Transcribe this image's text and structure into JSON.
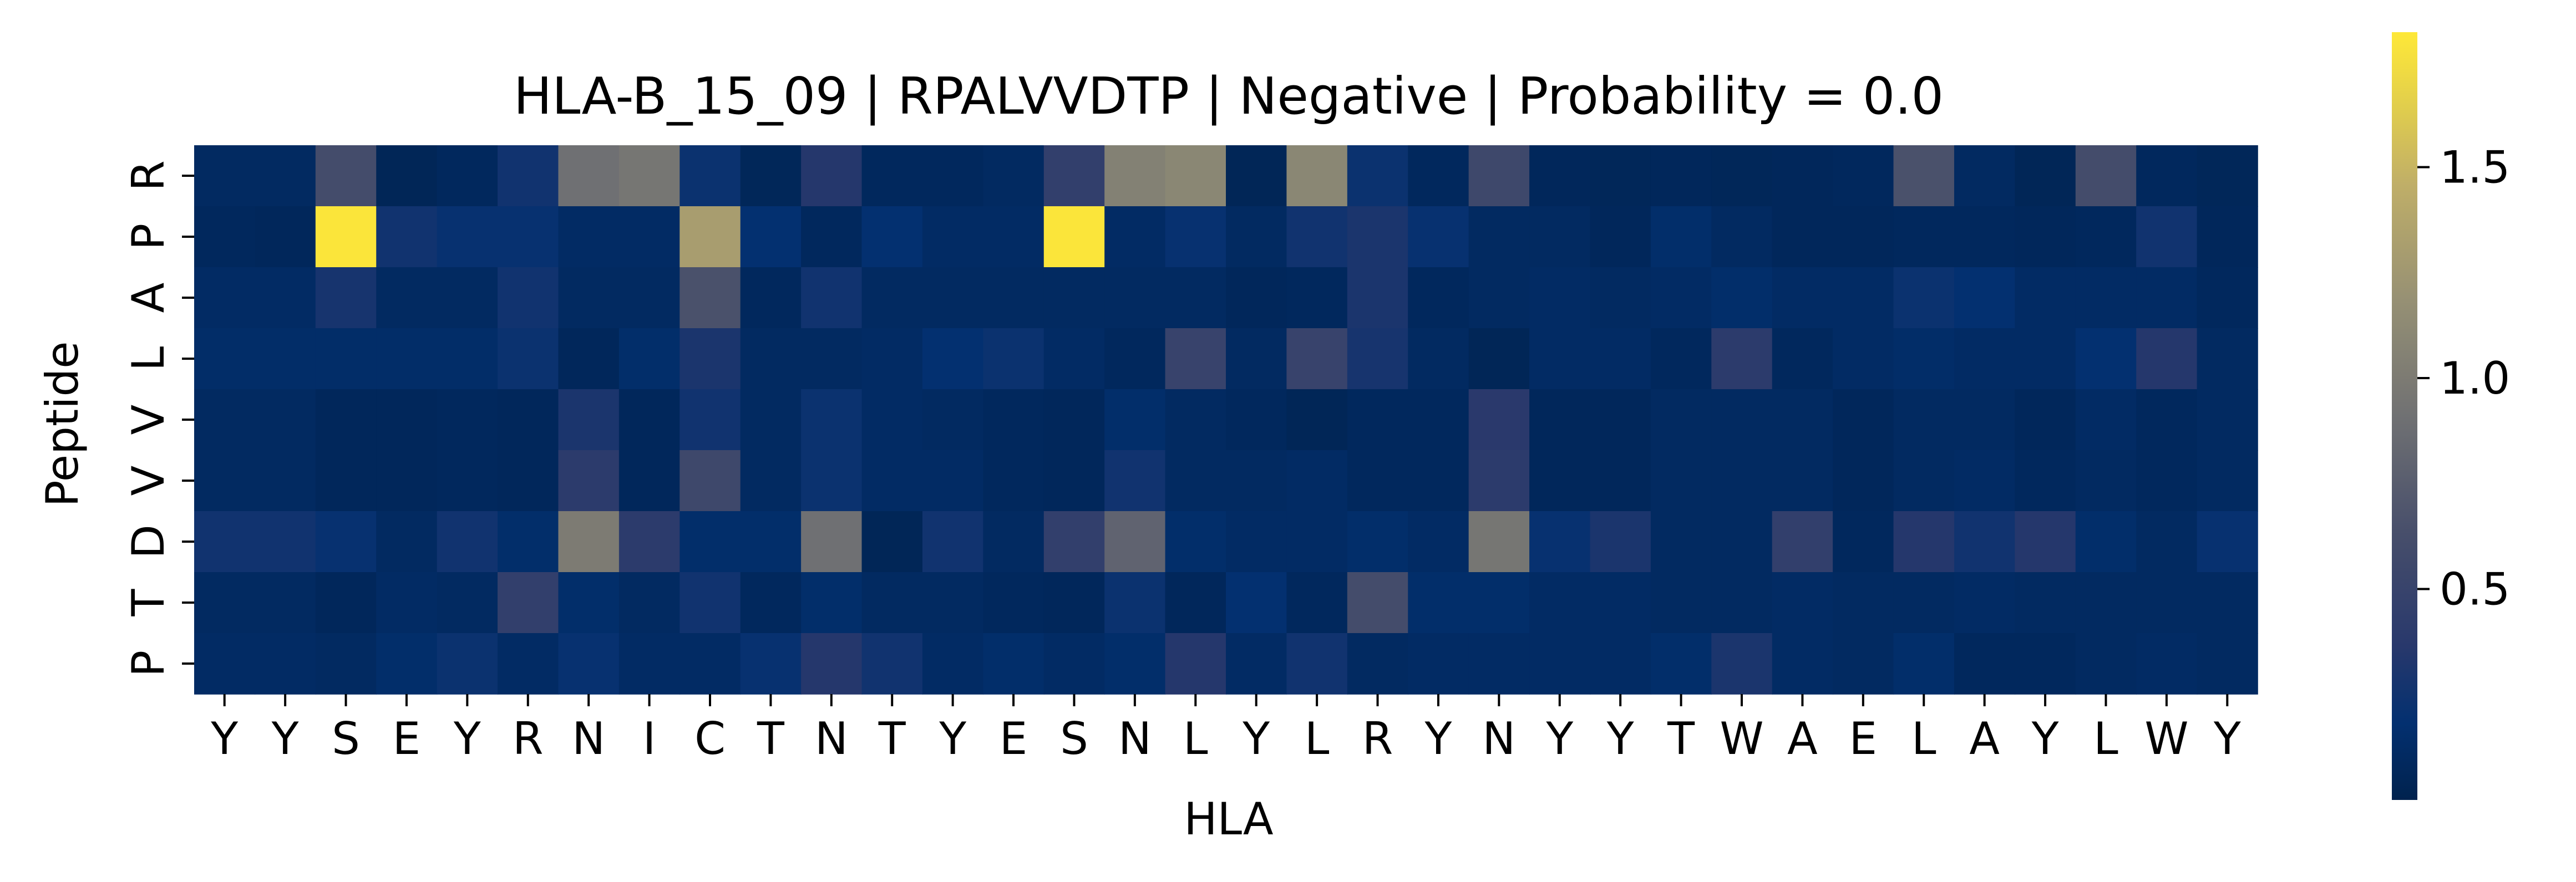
{
  "chart_data": {
    "type": "heatmap",
    "title": "HLA-B_15_09 | RPALVVDTP | Negative | Probability = 0.0",
    "xlabel": "HLA",
    "ylabel": "Peptide",
    "x_categories": [
      "Y",
      "Y",
      "S",
      "E",
      "Y",
      "R",
      "N",
      "I",
      "C",
      "T",
      "N",
      "T",
      "Y",
      "E",
      "S",
      "N",
      "L",
      "Y",
      "L",
      "R",
      "Y",
      "N",
      "Y",
      "Y",
      "T",
      "W",
      "A",
      "E",
      "L",
      "A",
      "Y",
      "L",
      "W",
      "Y"
    ],
    "y_categories": [
      "R",
      "P",
      "A",
      "L",
      "V",
      "V",
      "D",
      "T",
      "P"
    ],
    "values": [
      [
        0.1,
        0.1,
        0.6,
        0.05,
        0.08,
        0.25,
        0.9,
        0.95,
        0.22,
        0.06,
        0.35,
        0.08,
        0.08,
        0.1,
        0.45,
        1.05,
        1.1,
        0.05,
        1.1,
        0.22,
        0.08,
        0.55,
        0.07,
        0.06,
        0.07,
        0.06,
        0.07,
        0.08,
        0.65,
        0.1,
        0.05,
        0.6,
        0.08,
        0.06
      ],
      [
        0.08,
        0.07,
        1.8,
        0.25,
        0.2,
        0.2,
        0.12,
        0.12,
        1.3,
        0.18,
        0.08,
        0.18,
        0.12,
        0.12,
        1.8,
        0.12,
        0.2,
        0.1,
        0.25,
        0.3,
        0.2,
        0.1,
        0.1,
        0.07,
        0.15,
        0.1,
        0.07,
        0.07,
        0.08,
        0.08,
        0.07,
        0.08,
        0.25,
        0.07
      ],
      [
        0.12,
        0.12,
        0.28,
        0.1,
        0.1,
        0.25,
        0.1,
        0.1,
        0.65,
        0.08,
        0.25,
        0.1,
        0.1,
        0.1,
        0.1,
        0.1,
        0.1,
        0.07,
        0.08,
        0.3,
        0.08,
        0.1,
        0.12,
        0.1,
        0.12,
        0.15,
        0.12,
        0.12,
        0.22,
        0.18,
        0.12,
        0.12,
        0.12,
        0.08
      ],
      [
        0.14,
        0.14,
        0.14,
        0.14,
        0.14,
        0.22,
        0.07,
        0.15,
        0.3,
        0.1,
        0.1,
        0.12,
        0.18,
        0.22,
        0.12,
        0.08,
        0.5,
        0.1,
        0.5,
        0.28,
        0.1,
        0.05,
        0.12,
        0.12,
        0.08,
        0.4,
        0.08,
        0.12,
        0.14,
        0.12,
        0.12,
        0.18,
        0.35,
        0.1
      ],
      [
        0.1,
        0.1,
        0.07,
        0.07,
        0.08,
        0.07,
        0.3,
        0.07,
        0.25,
        0.1,
        0.22,
        0.12,
        0.1,
        0.08,
        0.07,
        0.15,
        0.1,
        0.08,
        0.05,
        0.08,
        0.08,
        0.38,
        0.07,
        0.07,
        0.1,
        0.1,
        0.1,
        0.07,
        0.1,
        0.1,
        0.07,
        0.12,
        0.08,
        0.1
      ],
      [
        0.1,
        0.1,
        0.07,
        0.07,
        0.08,
        0.07,
        0.4,
        0.07,
        0.55,
        0.1,
        0.22,
        0.12,
        0.12,
        0.08,
        0.07,
        0.25,
        0.1,
        0.1,
        0.12,
        0.08,
        0.08,
        0.4,
        0.07,
        0.07,
        0.1,
        0.1,
        0.1,
        0.07,
        0.1,
        0.12,
        0.08,
        0.1,
        0.08,
        0.1
      ],
      [
        0.25,
        0.25,
        0.2,
        0.1,
        0.25,
        0.15,
        1.0,
        0.4,
        0.15,
        0.15,
        0.9,
        0.05,
        0.25,
        0.1,
        0.45,
        0.8,
        0.15,
        0.12,
        0.12,
        0.15,
        0.12,
        0.95,
        0.2,
        0.3,
        0.1,
        0.1,
        0.45,
        0.08,
        0.35,
        0.25,
        0.35,
        0.15,
        0.1,
        0.2
      ],
      [
        0.1,
        0.1,
        0.07,
        0.12,
        0.1,
        0.45,
        0.15,
        0.1,
        0.25,
        0.08,
        0.15,
        0.1,
        0.1,
        0.08,
        0.07,
        0.22,
        0.07,
        0.18,
        0.08,
        0.6,
        0.15,
        0.15,
        0.12,
        0.12,
        0.1,
        0.1,
        0.12,
        0.1,
        0.1,
        0.12,
        0.1,
        0.1,
        0.1,
        0.1
      ],
      [
        0.12,
        0.12,
        0.1,
        0.15,
        0.22,
        0.12,
        0.2,
        0.12,
        0.12,
        0.2,
        0.35,
        0.25,
        0.12,
        0.15,
        0.12,
        0.15,
        0.35,
        0.12,
        0.25,
        0.1,
        0.12,
        0.12,
        0.12,
        0.12,
        0.15,
        0.3,
        0.12,
        0.1,
        0.15,
        0.08,
        0.08,
        0.1,
        0.12,
        0.1
      ]
    ],
    "colorbar": {
      "colormap": "cividis",
      "vmin": 0.0,
      "vmax": 1.82,
      "ticks": [
        0.5,
        1.0,
        1.5
      ],
      "tick_labels": [
        "0.5",
        "1.0",
        "1.5"
      ]
    },
    "grid": false
  }
}
